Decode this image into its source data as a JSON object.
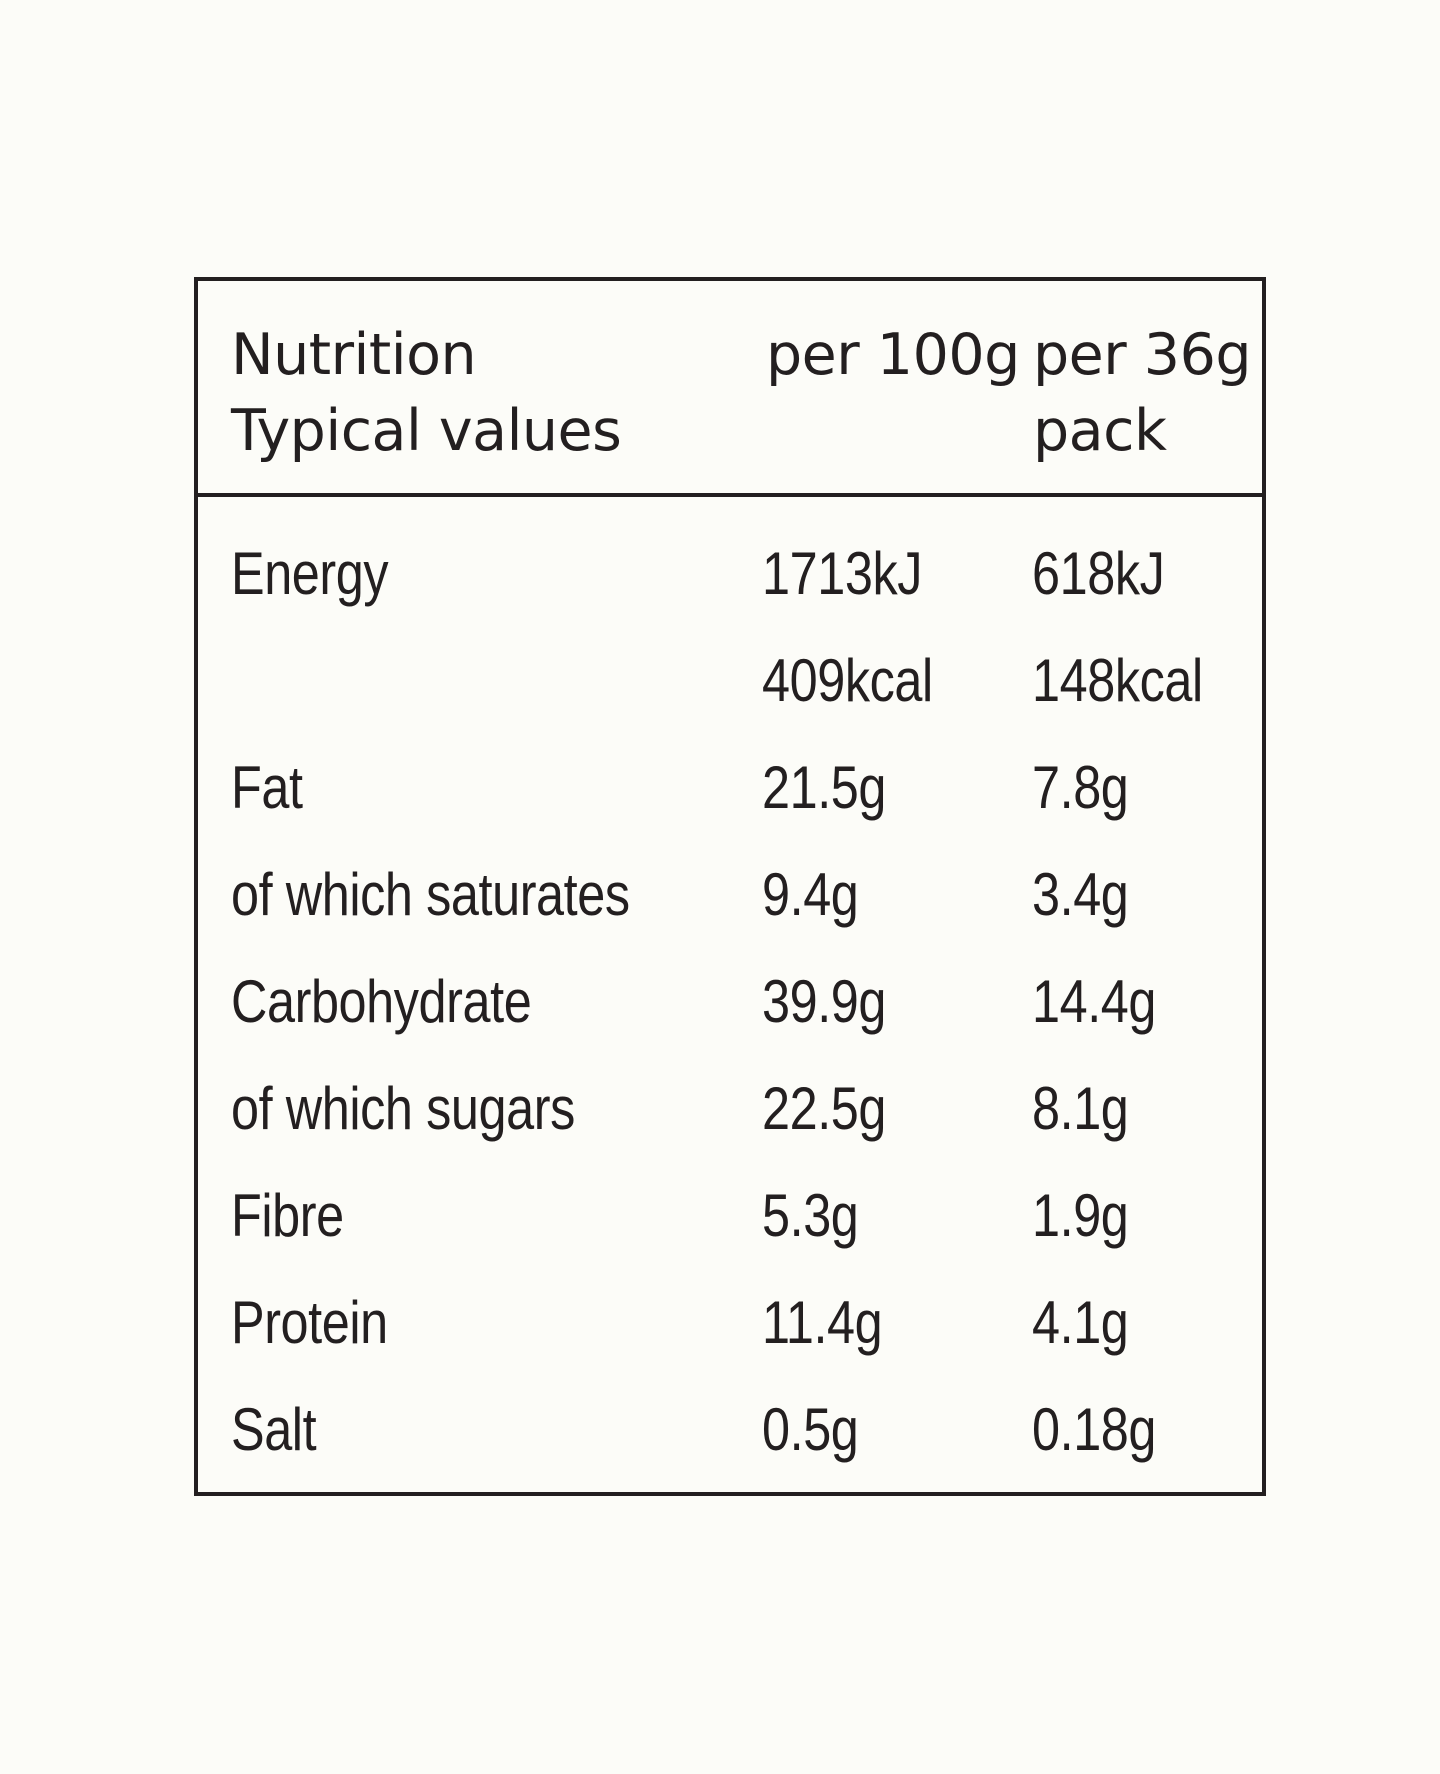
{
  "header": {
    "col1_line1": "Nutrition",
    "col1_line2": "Typical values",
    "col2_line1": "per 100g",
    "col3_line1": "per 36g",
    "col3_line2": "pack"
  },
  "rows": [
    {
      "label": "Energy",
      "per100g": "1713kJ",
      "perPack": "618kJ"
    },
    {
      "label": "",
      "per100g": "409kcal",
      "perPack": "148kcal"
    },
    {
      "label": "Fat",
      "per100g": "21.5g",
      "perPack": "7.8g"
    },
    {
      "label": "of which saturates",
      "per100g": "9.4g",
      "perPack": "3.4g"
    },
    {
      "label": "Carbohydrate",
      "per100g": "39.9g",
      "perPack": "14.4g"
    },
    {
      "label": "of which sugars",
      "per100g": "22.5g",
      "perPack": "8.1g"
    },
    {
      "label": "Fibre",
      "per100g": "5.3g",
      "perPack": "1.9g"
    },
    {
      "label": "Protein",
      "per100g": "11.4g",
      "perPack": "4.1g"
    },
    {
      "label": "Salt",
      "per100g": "0.5g",
      "perPack": "0.18g"
    }
  ]
}
